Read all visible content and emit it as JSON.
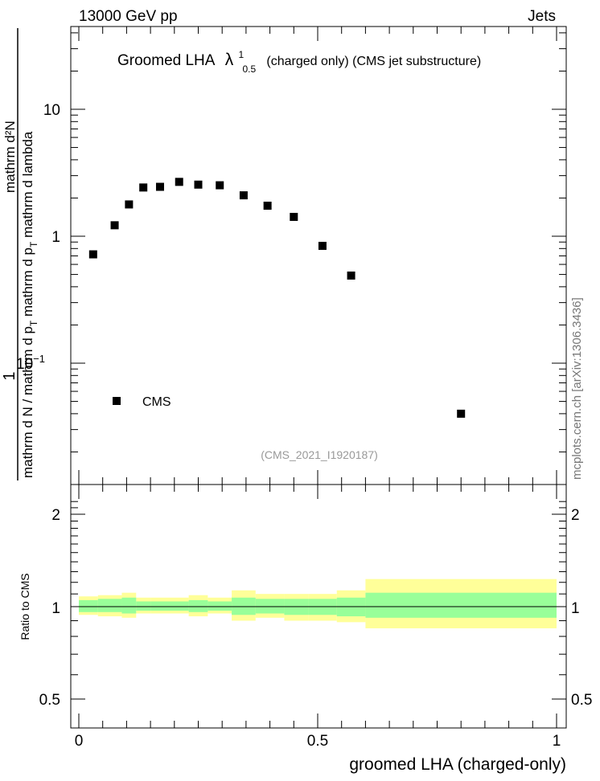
{
  "header": {
    "left": "13000 GeV pp",
    "right": "Jets"
  },
  "plot": {
    "title_main": "Groomed LHA",
    "title_symbol": "λ",
    "title_sup": "1",
    "title_sub": "0.5",
    "title_tail": "(charged only) (CMS jet substructure)",
    "ylabel_line1": "1",
    "ylabel_denominator": "mathrm d N / mathrm d p",
    "ylabel_sub_T": "T",
    "ylabel_numerator": "mathrm d²N",
    "ylabel_numerator_rest": "mathrm d p",
    "ylabel_numerator_tail": "mathrm d lambda",
    "legend_label": "CMS",
    "analysis_id": "(CMS_2021_I1920187)",
    "side_label": "mcplots.cern.ch [arXiv:1306.3436]",
    "ytick_labels": [
      "10",
      "1",
      "10"
    ],
    "ytick_exp": "−1"
  },
  "ratio": {
    "ylabel": "Ratio to CMS",
    "ytick_labels": [
      "2",
      "1",
      "0.5"
    ],
    "xlabel": "groomed LHA (charged-only)",
    "xtick_labels": [
      "0",
      "0.5",
      "1"
    ]
  },
  "colors": {
    "band_outer": "#ffff99",
    "band_inner": "#99ff99",
    "marker": "#000000"
  },
  "chart_data": [
    {
      "type": "scatter",
      "title": "Groomed LHA λ^1_0.5 (charged only) (CMS jet substructure)",
      "xlabel": "groomed LHA (charged-only)",
      "ylabel": "1 / (mathrm d N / mathrm d p_T) · mathrm d²N / (mathrm d p_T mathrm d lambda)",
      "xlim": [
        0,
        1
      ],
      "ylim": [
        0.015,
        45
      ],
      "yscale": "log",
      "series": [
        {
          "name": "CMS",
          "x": [
            0.03,
            0.075,
            0.105,
            0.135,
            0.17,
            0.21,
            0.25,
            0.295,
            0.345,
            0.395,
            0.45,
            0.51,
            0.57,
            0.8
          ],
          "y": [
            0.72,
            1.22,
            1.78,
            2.42,
            2.45,
            2.68,
            2.55,
            2.52,
            2.1,
            1.74,
            1.42,
            0.84,
            0.49,
            0.04
          ]
        }
      ]
    },
    {
      "type": "area",
      "ylabel": "Ratio to CMS",
      "xlabel": "groomed LHA (charged-only)",
      "xlim": [
        0,
        1
      ],
      "ylim": [
        0.42,
        2.35
      ],
      "yscale": "log",
      "bins": [
        {
          "x0": 0.0,
          "x1": 0.04,
          "inner": [
            0.96,
            1.05
          ],
          "outer": [
            0.94,
            1.08
          ]
        },
        {
          "x0": 0.04,
          "x1": 0.09,
          "inner": [
            0.96,
            1.06
          ],
          "outer": [
            0.93,
            1.09
          ]
        },
        {
          "x0": 0.09,
          "x1": 0.12,
          "inner": [
            0.95,
            1.07
          ],
          "outer": [
            0.92,
            1.11
          ]
        },
        {
          "x0": 0.12,
          "x1": 0.15,
          "inner": [
            0.97,
            1.04
          ],
          "outer": [
            0.95,
            1.07
          ]
        },
        {
          "x0": 0.15,
          "x1": 0.23,
          "inner": [
            0.97,
            1.04
          ],
          "outer": [
            0.95,
            1.07
          ]
        },
        {
          "x0": 0.23,
          "x1": 0.27,
          "inner": [
            0.96,
            1.05
          ],
          "outer": [
            0.93,
            1.09
          ]
        },
        {
          "x0": 0.27,
          "x1": 0.32,
          "inner": [
            0.97,
            1.04
          ],
          "outer": [
            0.95,
            1.07
          ]
        },
        {
          "x0": 0.32,
          "x1": 0.37,
          "inner": [
            0.94,
            1.07
          ],
          "outer": [
            0.9,
            1.13
          ]
        },
        {
          "x0": 0.37,
          "x1": 0.43,
          "inner": [
            0.95,
            1.06
          ],
          "outer": [
            0.92,
            1.1
          ]
        },
        {
          "x0": 0.43,
          "x1": 0.48,
          "inner": [
            0.94,
            1.06
          ],
          "outer": [
            0.9,
            1.1
          ]
        },
        {
          "x0": 0.48,
          "x1": 0.54,
          "inner": [
            0.94,
            1.06
          ],
          "outer": [
            0.9,
            1.1
          ]
        },
        {
          "x0": 0.54,
          "x1": 0.6,
          "inner": [
            0.93,
            1.07
          ],
          "outer": [
            0.89,
            1.13
          ]
        },
        {
          "x0": 0.6,
          "x1": 1.0,
          "inner": [
            0.92,
            1.11
          ],
          "outer": [
            0.85,
            1.23
          ]
        }
      ]
    }
  ]
}
